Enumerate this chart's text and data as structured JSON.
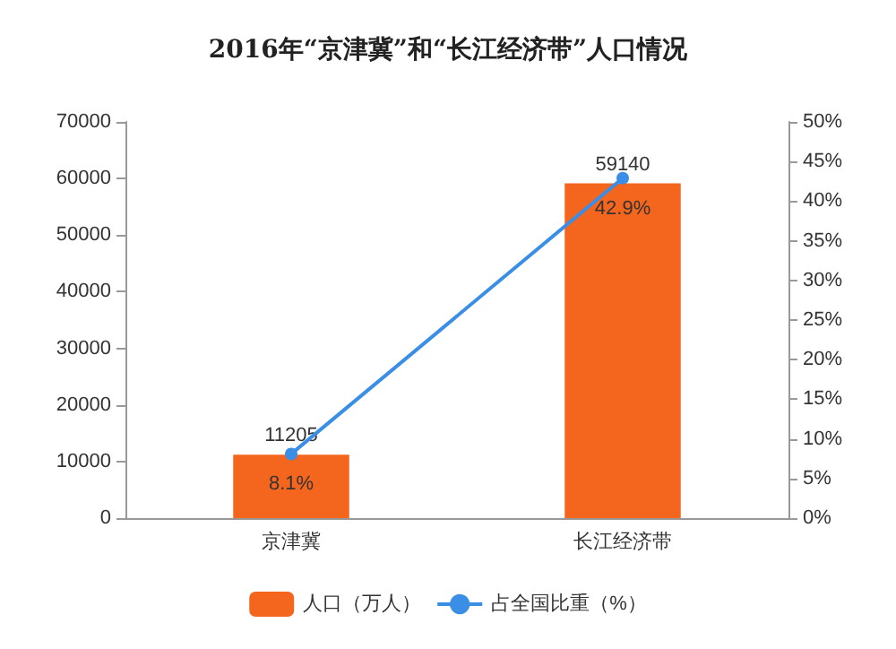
{
  "chart_data": {
    "type": "bar",
    "title": "2016年“京津冀”和“长江经济带”人口情况",
    "categories": [
      "京津冀",
      "长江经济带"
    ],
    "series": [
      {
        "name": "人口（万人）",
        "color": "#f4651e",
        "values": [
          11205,
          59140
        ],
        "value_labels": [
          "11205",
          "59140"
        ]
      },
      {
        "name": "占全国比重（%）",
        "type": "line",
        "axis": "y2",
        "color": "#3a8ee6",
        "values": [
          8.1,
          42.9
        ],
        "value_labels": [
          "8.1%",
          "42.9%"
        ],
        "marker": "circle"
      }
    ],
    "ylim": [
      0,
      70000
    ],
    "yticks": [
      0,
      10000,
      20000,
      30000,
      40000,
      50000,
      60000,
      70000
    ],
    "y2lim": [
      0,
      50
    ],
    "y2ticks": [
      {
        "value": 0,
        "label": "0%"
      },
      {
        "value": 5,
        "label": "5%"
      },
      {
        "value": 10,
        "label": "10%"
      },
      {
        "value": 15,
        "label": "15%"
      },
      {
        "value": 20,
        "label": "20%"
      },
      {
        "value": 25,
        "label": "25%"
      },
      {
        "value": 30,
        "label": "30%"
      },
      {
        "value": 35,
        "label": "35%"
      },
      {
        "value": 40,
        "label": "40%"
      },
      {
        "value": 45,
        "label": "45%"
      },
      {
        "value": 50,
        "label": "50%"
      }
    ],
    "legend": "bottom",
    "grid": false
  }
}
